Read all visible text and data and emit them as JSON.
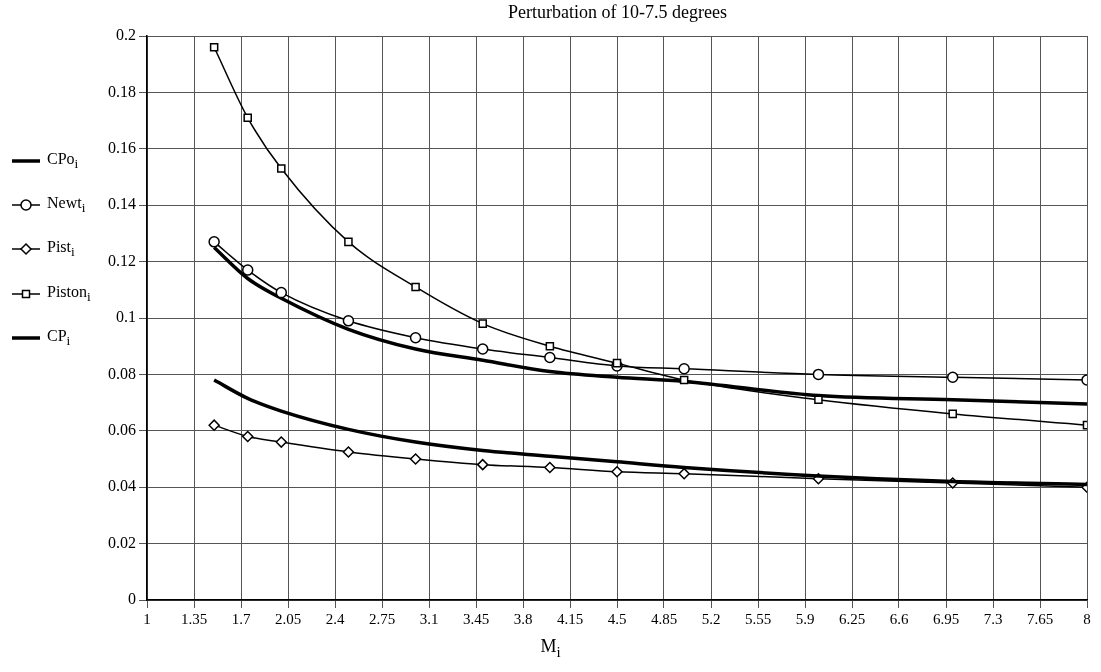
{
  "chart_data": {
    "type": "line",
    "title": "Perturbation of 10-7.5 degrees",
    "xlabel": "M$_{i}$",
    "x": [
      1.5,
      1.75,
      2,
      2.5,
      3,
      3.5,
      4,
      4.5,
      5,
      6,
      7,
      8
    ],
    "series": [
      {
        "name": "CPo$_{i}$",
        "color": "#000000",
        "marker": "none",
        "values": [
          0.125,
          0.114,
          0.107,
          0.096,
          0.089,
          0.085,
          0.081,
          0.079,
          0.0775,
          0.0725,
          0.071,
          0.0695
        ]
      },
      {
        "name": "Newt$_{i}$",
        "color": "#000000",
        "marker": "circle",
        "values": [
          0.127,
          0.117,
          0.109,
          0.099,
          0.093,
          0.089,
          0.086,
          0.083,
          0.082,
          0.08,
          0.079,
          0.078
        ]
      },
      {
        "name": "Pist$_{i}$",
        "color": "#000000",
        "marker": "diamond",
        "values": [
          0.062,
          0.058,
          0.056,
          0.0525,
          0.05,
          0.048,
          0.047,
          0.0455,
          0.0448,
          0.043,
          0.0415,
          0.04
        ]
      },
      {
        "name": "Piston$_{i}$",
        "color": "#000000",
        "marker": "square",
        "values": [
          0.196,
          0.171,
          0.153,
          0.127,
          0.111,
          0.098,
          0.09,
          0.084,
          0.078,
          0.071,
          0.066,
          0.062
        ]
      },
      {
        "name": "CP$_{i}$",
        "color": "#000000",
        "marker": "none",
        "values": [
          0.078,
          0.0715,
          0.067,
          0.0605,
          0.056,
          0.053,
          0.051,
          0.049,
          0.047,
          0.044,
          0.042,
          0.041
        ]
      }
    ],
    "xlim": [
      1,
      8
    ],
    "xticks": [
      1,
      1.35,
      1.7,
      2.05,
      2.4,
      2.75,
      3.1,
      3.45,
      3.8,
      4.15,
      4.5,
      4.85,
      5.2,
      5.55,
      5.9,
      6.25,
      6.6,
      6.95,
      7.3,
      7.65,
      8
    ],
    "ylim": [
      0,
      0.2
    ],
    "yticks": [
      0,
      0.02,
      0.04,
      0.06,
      0.08,
      0.1,
      0.12,
      0.14,
      0.16,
      0.18,
      0.2
    ],
    "grid": true,
    "legend": "left"
  }
}
